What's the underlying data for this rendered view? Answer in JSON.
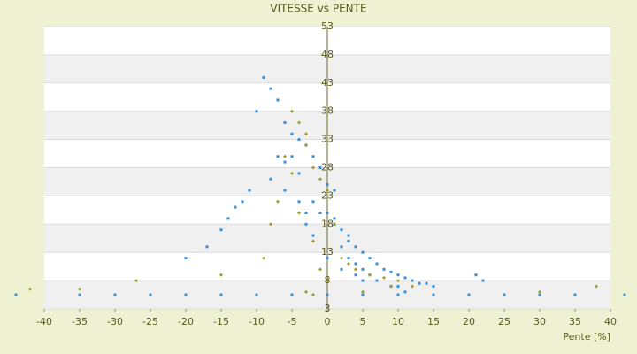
{
  "chart_data": {
    "type": "scatter",
    "title": "VITESSE vs PENTE",
    "x_label": "Pente [%]",
    "xlim": [
      -40,
      40
    ],
    "xticks": [
      -40,
      -35,
      -30,
      -25,
      -20,
      -15,
      -10,
      -5,
      0,
      5,
      10,
      15,
      20,
      25,
      30,
      35,
      40
    ],
    "ylim": [
      3,
      53
    ],
    "yticks": [
      3,
      8,
      13,
      18,
      23,
      28,
      33,
      38,
      43,
      48,
      53
    ],
    "grid": true,
    "series": [
      {
        "color": "#3a8fd9",
        "x": [
          -9,
          -8,
          -7,
          -10,
          -6,
          -5,
          -4,
          -5,
          -6,
          -3,
          -2,
          -4,
          -1,
          0,
          1,
          -2,
          -3,
          0,
          1,
          2,
          3,
          4,
          5,
          6,
          7,
          8,
          9,
          10,
          11,
          12,
          13,
          14,
          15,
          2,
          3,
          4,
          5,
          6,
          3,
          1,
          -1,
          -7,
          -8,
          -11,
          -12,
          -13,
          -14,
          -15,
          -17,
          -20,
          0,
          5,
          10,
          -44,
          -35,
          -30,
          -25,
          -20,
          -15,
          -10,
          -5,
          0,
          5,
          10,
          15,
          20,
          25,
          30,
          35,
          42,
          -6,
          -4,
          -3,
          -2,
          2,
          4,
          7,
          9,
          11,
          21,
          22
        ],
        "values": [
          44,
          42,
          40,
          38,
          36,
          34,
          33,
          30,
          29,
          32,
          30,
          27,
          28,
          25,
          24,
          22,
          20,
          20,
          19,
          17,
          15,
          14,
          13,
          12,
          11,
          10,
          9.5,
          9,
          8.5,
          8,
          7.5,
          7.5,
          7,
          14,
          12,
          11,
          10,
          9,
          16,
          18,
          20,
          30,
          26,
          24,
          22,
          21,
          19,
          17,
          14,
          12,
          12,
          8,
          7,
          5.5,
          5.5,
          5.5,
          5.5,
          5.5,
          5.5,
          5.5,
          5.5,
          5.5,
          5.5,
          5.5,
          5.5,
          5.5,
          5.5,
          5.5,
          5.5,
          5.5,
          24,
          22,
          18,
          16,
          10,
          9,
          8,
          7,
          6,
          9,
          8
        ]
      },
      {
        "color": "#a09a28",
        "x": [
          -5,
          -4,
          -3,
          -6,
          -2,
          -1,
          0,
          -4,
          -3,
          -5,
          -7,
          -8,
          -2,
          1,
          2,
          3,
          4,
          6,
          8,
          10,
          12,
          -1,
          0,
          -9,
          -15,
          -27,
          -35,
          -42,
          30,
          38,
          -3,
          -2,
          5,
          9
        ],
        "values": [
          38,
          36,
          34,
          30,
          28,
          26,
          24,
          20,
          32,
          27,
          22,
          18,
          15,
          18,
          12,
          11,
          10,
          9,
          8.5,
          8,
          7,
          10,
          8,
          12,
          9,
          8,
          6.5,
          6.5,
          6,
          7,
          6,
          5.5,
          6,
          7
        ]
      }
    ]
  }
}
